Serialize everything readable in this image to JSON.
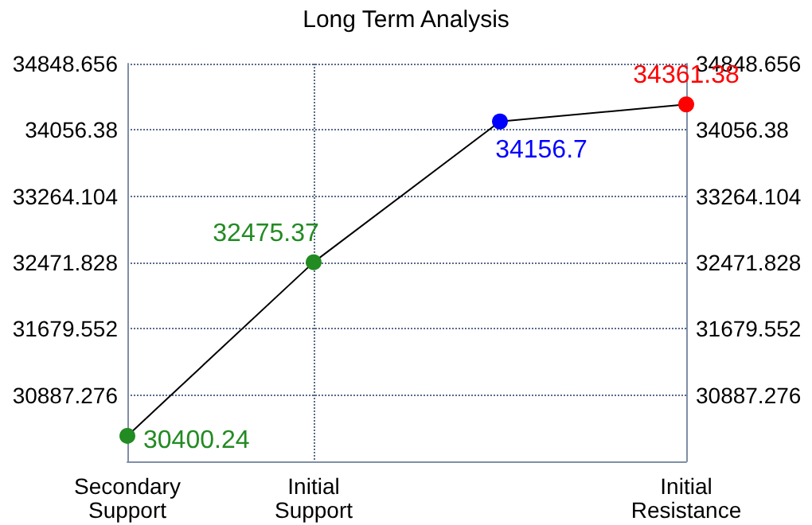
{
  "chart_data": {
    "type": "line",
    "title": "Long Term Analysis",
    "categories": [
      "Secondary Support",
      "Initial Support",
      null,
      "Initial Resistance"
    ],
    "series": [
      {
        "color": "#000000",
        "colors": [
          "#228b22",
          "#228b22",
          "#0000ff",
          "#ff0000"
        ],
        "values": [
          30400.24,
          32475.37,
          34156.7,
          34361.38
        ]
      }
    ],
    "ylim": [
      30095,
      34848.656
    ],
    "yticks": [
      30887.276,
      31679.552,
      32471.828,
      33264.104,
      34056.38,
      34848.656
    ],
    "y2lim": [
      30095,
      34848.656
    ],
    "y2ticks": [
      30887.276,
      31679.552,
      32471.828,
      33264.104,
      34056.38,
      34848.656
    ],
    "grid": true,
    "marker": "circle",
    "line_style": "solid",
    "data_labels": true
  }
}
